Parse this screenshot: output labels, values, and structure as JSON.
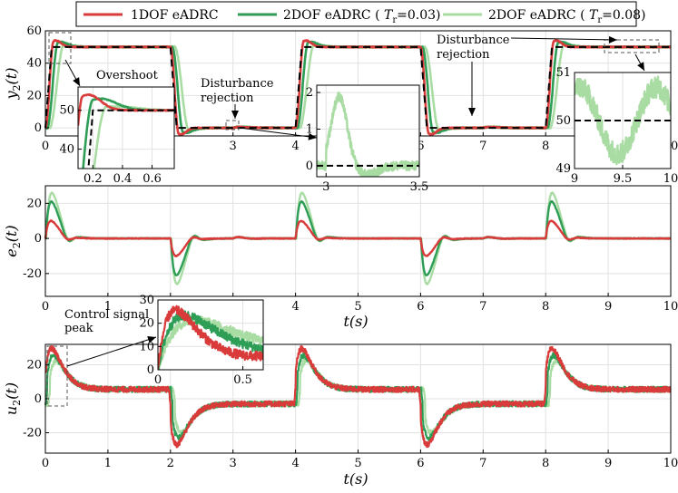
{
  "legend": {
    "entries": [
      {
        "label": "1DOF eADRC",
        "color": "#d93a3a"
      },
      {
        "label": "2DOF eADRC ( T_r=0.03)",
        "color": "#2e9e57"
      },
      {
        "label": "2DOF eADRC ( T_r=0.08)",
        "color": "#a9dca3"
      }
    ]
  },
  "annotations": {
    "overshoot": "Overshoot",
    "disturbance1_line1": "Disturbance",
    "disturbance1_line2": "rejection",
    "disturbance2_line1": "Disturbance",
    "disturbance2_line2": "rejection",
    "control_line1": "Control signal",
    "control_line2": "peak"
  },
  "colors": {
    "red": "#d93a3a",
    "green": "#2e9e57",
    "lightgreen": "#a9dca3",
    "reference": "#000000"
  },
  "chart_data": [
    {
      "type": "line",
      "id": "y2",
      "ylabel": "y_2(t)",
      "xlabel": "",
      "xlim": [
        0,
        10
      ],
      "ylim": [
        -5,
        60
      ],
      "xticks": [
        0,
        1,
        2,
        3,
        4,
        5,
        6,
        7,
        8,
        9,
        10
      ],
      "yticks": [
        0,
        20,
        40,
        60
      ],
      "reference": {
        "style": "dashed",
        "description": "square-wave setpoint 0 to 50",
        "x": [
          0,
          0.1,
          2,
          2.1,
          4,
          4.1,
          6,
          6.1,
          8,
          8.1,
          10
        ],
        "y": [
          0,
          50,
          50,
          0,
          0,
          50,
          50,
          0,
          0,
          50,
          50
        ]
      },
      "series": [
        {
          "name": "1DOF eADRC",
          "peak": 54,
          "settle": 50
        },
        {
          "name": "2DOF eADRC ( T_r=0.03)",
          "peak": 53,
          "settle": 50
        },
        {
          "name": "2DOF eADRC ( T_r=0.08)",
          "peak": 51,
          "settle": 50
        }
      ]
    },
    {
      "type": "line",
      "id": "y2-inset-overshoot",
      "xlim": [
        0.1,
        0.75
      ],
      "ylim": [
        35,
        56
      ],
      "xticks": [
        0.2,
        0.4,
        0.6
      ],
      "yticks": [
        40,
        50
      ]
    },
    {
      "type": "line",
      "id": "y2-inset-disturbance",
      "xlim": [
        2.95,
        3.5
      ],
      "ylim": [
        -0.3,
        2.2
      ],
      "xticks": [
        3,
        3.5
      ],
      "yticks": [
        0,
        1,
        2
      ]
    },
    {
      "type": "line",
      "id": "y2-inset-steady",
      "xlim": [
        9,
        10
      ],
      "ylim": [
        49,
        51
      ],
      "xticks": [
        9,
        9.5,
        10
      ],
      "yticks": [
        49,
        50,
        51
      ]
    },
    {
      "type": "line",
      "id": "e2",
      "ylabel": "e_2(t)",
      "xlabel": "t(s)",
      "xlim": [
        0,
        10
      ],
      "ylim": [
        -33,
        30
      ],
      "xticks": [
        0,
        1,
        2,
        3,
        4,
        5,
        6,
        7,
        8,
        9,
        10
      ],
      "yticks": [
        -20,
        0,
        20
      ],
      "series": [
        {
          "name": "1DOF eADRC",
          "peak": 10
        },
        {
          "name": "2DOF eADRC ( T_r=0.03)",
          "peak": 21
        },
        {
          "name": "2DOF eADRC ( T_r=0.08)",
          "peak": 26
        }
      ]
    },
    {
      "type": "line",
      "id": "u2",
      "ylabel": "u_2(t)",
      "xlabel": "t(s)",
      "xlim": [
        0,
        10
      ],
      "ylim": [
        -32,
        32
      ],
      "xticks": [
        0,
        1,
        2,
        3,
        4,
        5,
        6,
        7,
        8,
        9,
        10
      ],
      "yticks": [
        -20,
        0,
        20
      ],
      "series": [
        {
          "name": "1DOF eADRC",
          "peak": 29
        },
        {
          "name": "2DOF eADRC ( T_r=0.03)",
          "peak": 26
        },
        {
          "name": "2DOF eADRC ( T_r=0.08)",
          "peak": 23
        }
      ]
    },
    {
      "type": "line",
      "id": "u2-inset",
      "xlim": [
        0,
        0.62
      ],
      "ylim": [
        0,
        30
      ],
      "xticks": [
        0,
        0.5
      ],
      "yticks": [
        0,
        10,
        20,
        30
      ]
    }
  ]
}
